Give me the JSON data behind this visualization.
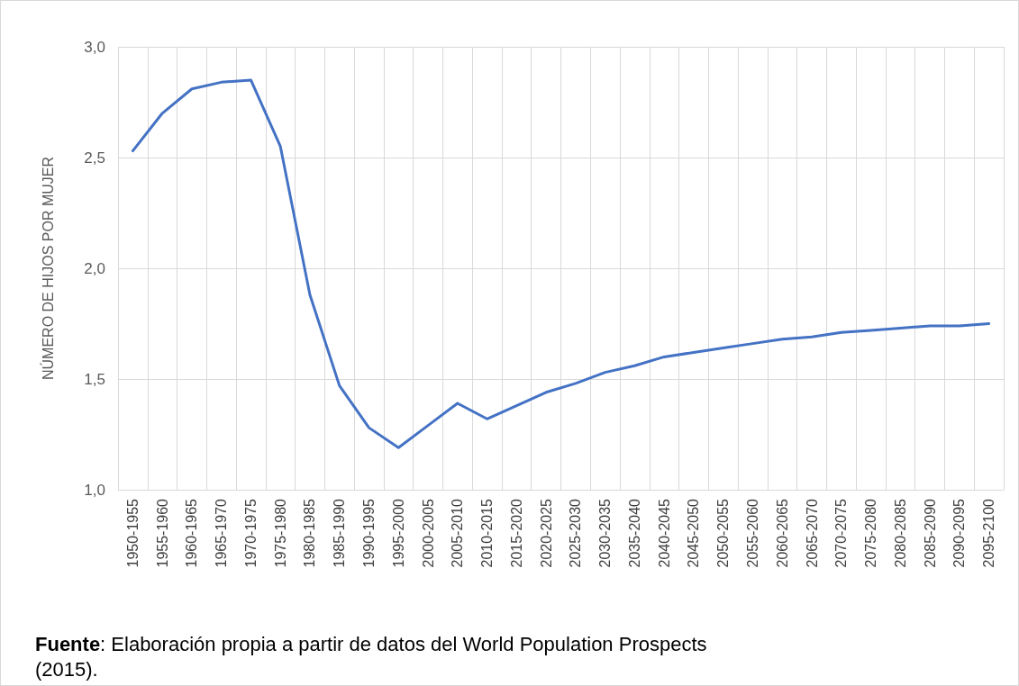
{
  "chart_data": {
    "type": "line",
    "ylabel": "NÚMERO DE HIJOS POR MUJER",
    "categories": [
      "1950-1955",
      "1955-1960",
      "1960-1965",
      "1965-1970",
      "1970-1975",
      "1975-1980",
      "1980-1985",
      "1985-1990",
      "1990-1995",
      "1995-2000",
      "2000-2005",
      "2005-2010",
      "2010-2015",
      "2015-2020",
      "2020-2025",
      "2025-2030",
      "2030-2035",
      "2035-2040",
      "2040-2045",
      "2045-2050",
      "2050-2055",
      "2055-2060",
      "2060-2065",
      "2065-2070",
      "2070-2075",
      "2075-2080",
      "2080-2085",
      "2085-2090",
      "2090-2095",
      "2095-2100"
    ],
    "series": [
      {
        "color": "#4472c4",
        "values": [
          2.53,
          2.7,
          2.81,
          2.84,
          2.85,
          2.55,
          1.88,
          1.47,
          1.28,
          1.19,
          1.29,
          1.39,
          1.32,
          1.38,
          1.44,
          1.48,
          1.53,
          1.56,
          1.6,
          1.62,
          1.64,
          1.66,
          1.68,
          1.69,
          1.71,
          1.72,
          1.73,
          1.74,
          1.74,
          1.75
        ]
      }
    ],
    "ylim": [
      1.0,
      3.0
    ],
    "yticks": [
      {
        "value": 1.0,
        "label": "1,0"
      },
      {
        "value": 1.5,
        "label": "1,5"
      },
      {
        "value": 2.0,
        "label": "2,0"
      },
      {
        "value": 2.5,
        "label": "2,5"
      },
      {
        "value": 3.0,
        "label": "3,0"
      }
    ],
    "grid": true,
    "marker": "none",
    "line_style": "solid",
    "annotations": [
      "Fuente: Elaboración propia a partir de datos del World Population Prospects (2015)."
    ]
  }
}
